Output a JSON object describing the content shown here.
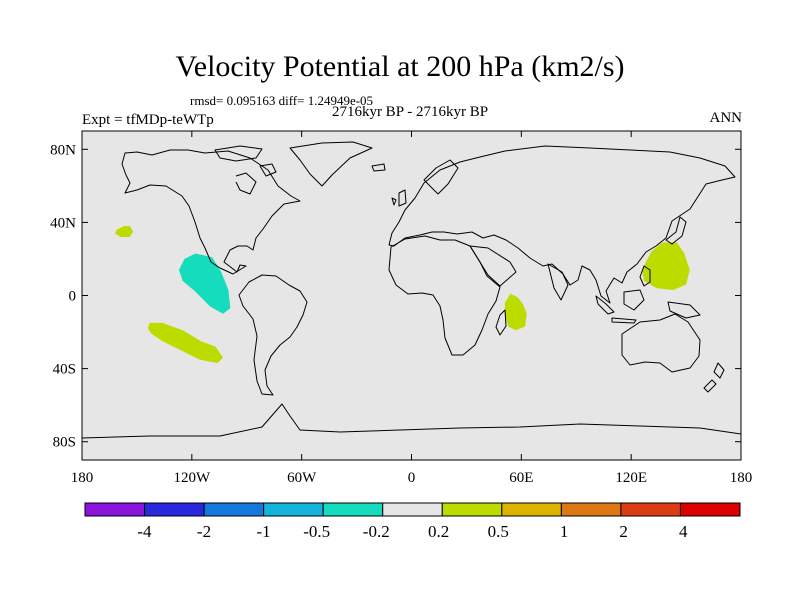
{
  "title": "Velocity Potential at 200 hPa (km2/s)",
  "stats": "rmsd= 0.095163 diff= 1.24949e-05",
  "left_label": "Expt = tfMDp-teWTp",
  "center_label": "2716kyr BP - 2716kyr BP",
  "right_label": "ANN",
  "map": {
    "projection": "cylindrical equidistant",
    "lon_range": [
      -180,
      180
    ],
    "lat_range": [
      -90,
      90
    ],
    "lat_ticks": [
      {
        "v": 80,
        "label": "80N"
      },
      {
        "v": 40,
        "label": "40N"
      },
      {
        "v": 0,
        "label": "0"
      },
      {
        "v": -40,
        "label": "40S"
      },
      {
        "v": -80,
        "label": "80S"
      }
    ],
    "lon_ticks": [
      {
        "v": -180,
        "label": "180"
      },
      {
        "v": -120,
        "label": "120W"
      },
      {
        "v": -60,
        "label": "60W"
      },
      {
        "v": 0,
        "label": "0"
      },
      {
        "v": 60,
        "label": "60E"
      },
      {
        "v": 120,
        "label": "120E"
      },
      {
        "v": 180,
        "label": "180"
      }
    ],
    "background_color": "#e6e6e6"
  },
  "anomalies": [
    {
      "name": "north-pacific-positive",
      "category": "0.2 to 0.5",
      "color": "#bcdc00",
      "points": [
        [
          -161,
          36
        ],
        [
          -157,
          38
        ],
        [
          -154,
          38
        ],
        [
          -152,
          35
        ],
        [
          -154,
          32
        ],
        [
          -159,
          32
        ],
        [
          -162,
          34
        ]
      ]
    },
    {
      "name": "east-pacific-negative",
      "category": "-0.5 to -0.2",
      "color": "#14dcbc",
      "points": [
        [
          -124,
          20
        ],
        [
          -118,
          23
        ],
        [
          -109,
          21
        ],
        [
          -104,
          13
        ],
        [
          -100,
          3
        ],
        [
          -99,
          -7
        ],
        [
          -103,
          -10
        ],
        [
          -110,
          -6
        ],
        [
          -118,
          2
        ],
        [
          -125,
          8
        ],
        [
          -127,
          14
        ]
      ]
    },
    {
      "name": "south-pacific-positive",
      "category": "0.2 to 0.5",
      "color": "#bcdc00",
      "points": [
        [
          -143,
          -15
        ],
        [
          -136,
          -15
        ],
        [
          -125,
          -19
        ],
        [
          -115,
          -25
        ],
        [
          -107,
          -28
        ],
        [
          -103,
          -34
        ],
        [
          -106,
          -37
        ],
        [
          -116,
          -35
        ],
        [
          -126,
          -30
        ],
        [
          -136,
          -25
        ],
        [
          -142,
          -21
        ],
        [
          -144,
          -18
        ]
      ]
    },
    {
      "name": "indian-ocean-positive",
      "category": "0.2 to 0.5",
      "color": "#bcdc00",
      "points": [
        [
          54,
          1
        ],
        [
          58,
          -1
        ],
        [
          61,
          -5
        ],
        [
          63,
          -10
        ],
        [
          62,
          -17
        ],
        [
          57,
          -19
        ],
        [
          53,
          -17
        ],
        [
          51,
          -11
        ],
        [
          51,
          -4
        ]
      ]
    },
    {
      "name": "west-pacific-positive",
      "category": "0.2 to 0.5",
      "color": "#bcdc00",
      "points": [
        [
          126,
          14
        ],
        [
          131,
          24
        ],
        [
          137,
          29
        ],
        [
          145,
          29
        ],
        [
          149,
          23
        ],
        [
          152,
          14
        ],
        [
          150,
          6
        ],
        [
          143,
          3
        ],
        [
          134,
          4
        ],
        [
          127,
          8
        ]
      ]
    }
  ],
  "colorbar": {
    "boxes": [
      "#8a14dc",
      "#2828dc",
      "#1478dc",
      "#14b4dc",
      "#14dcbc",
      "#e6e6e6",
      "#bcdc00",
      "#dcb400",
      "#dc7814",
      "#dc3c14",
      "#dc0000"
    ],
    "labels": [
      "-4",
      "-2",
      "-1",
      "-0.5",
      "-0.2",
      "0.2",
      "0.5",
      "1",
      "2",
      "4"
    ]
  }
}
